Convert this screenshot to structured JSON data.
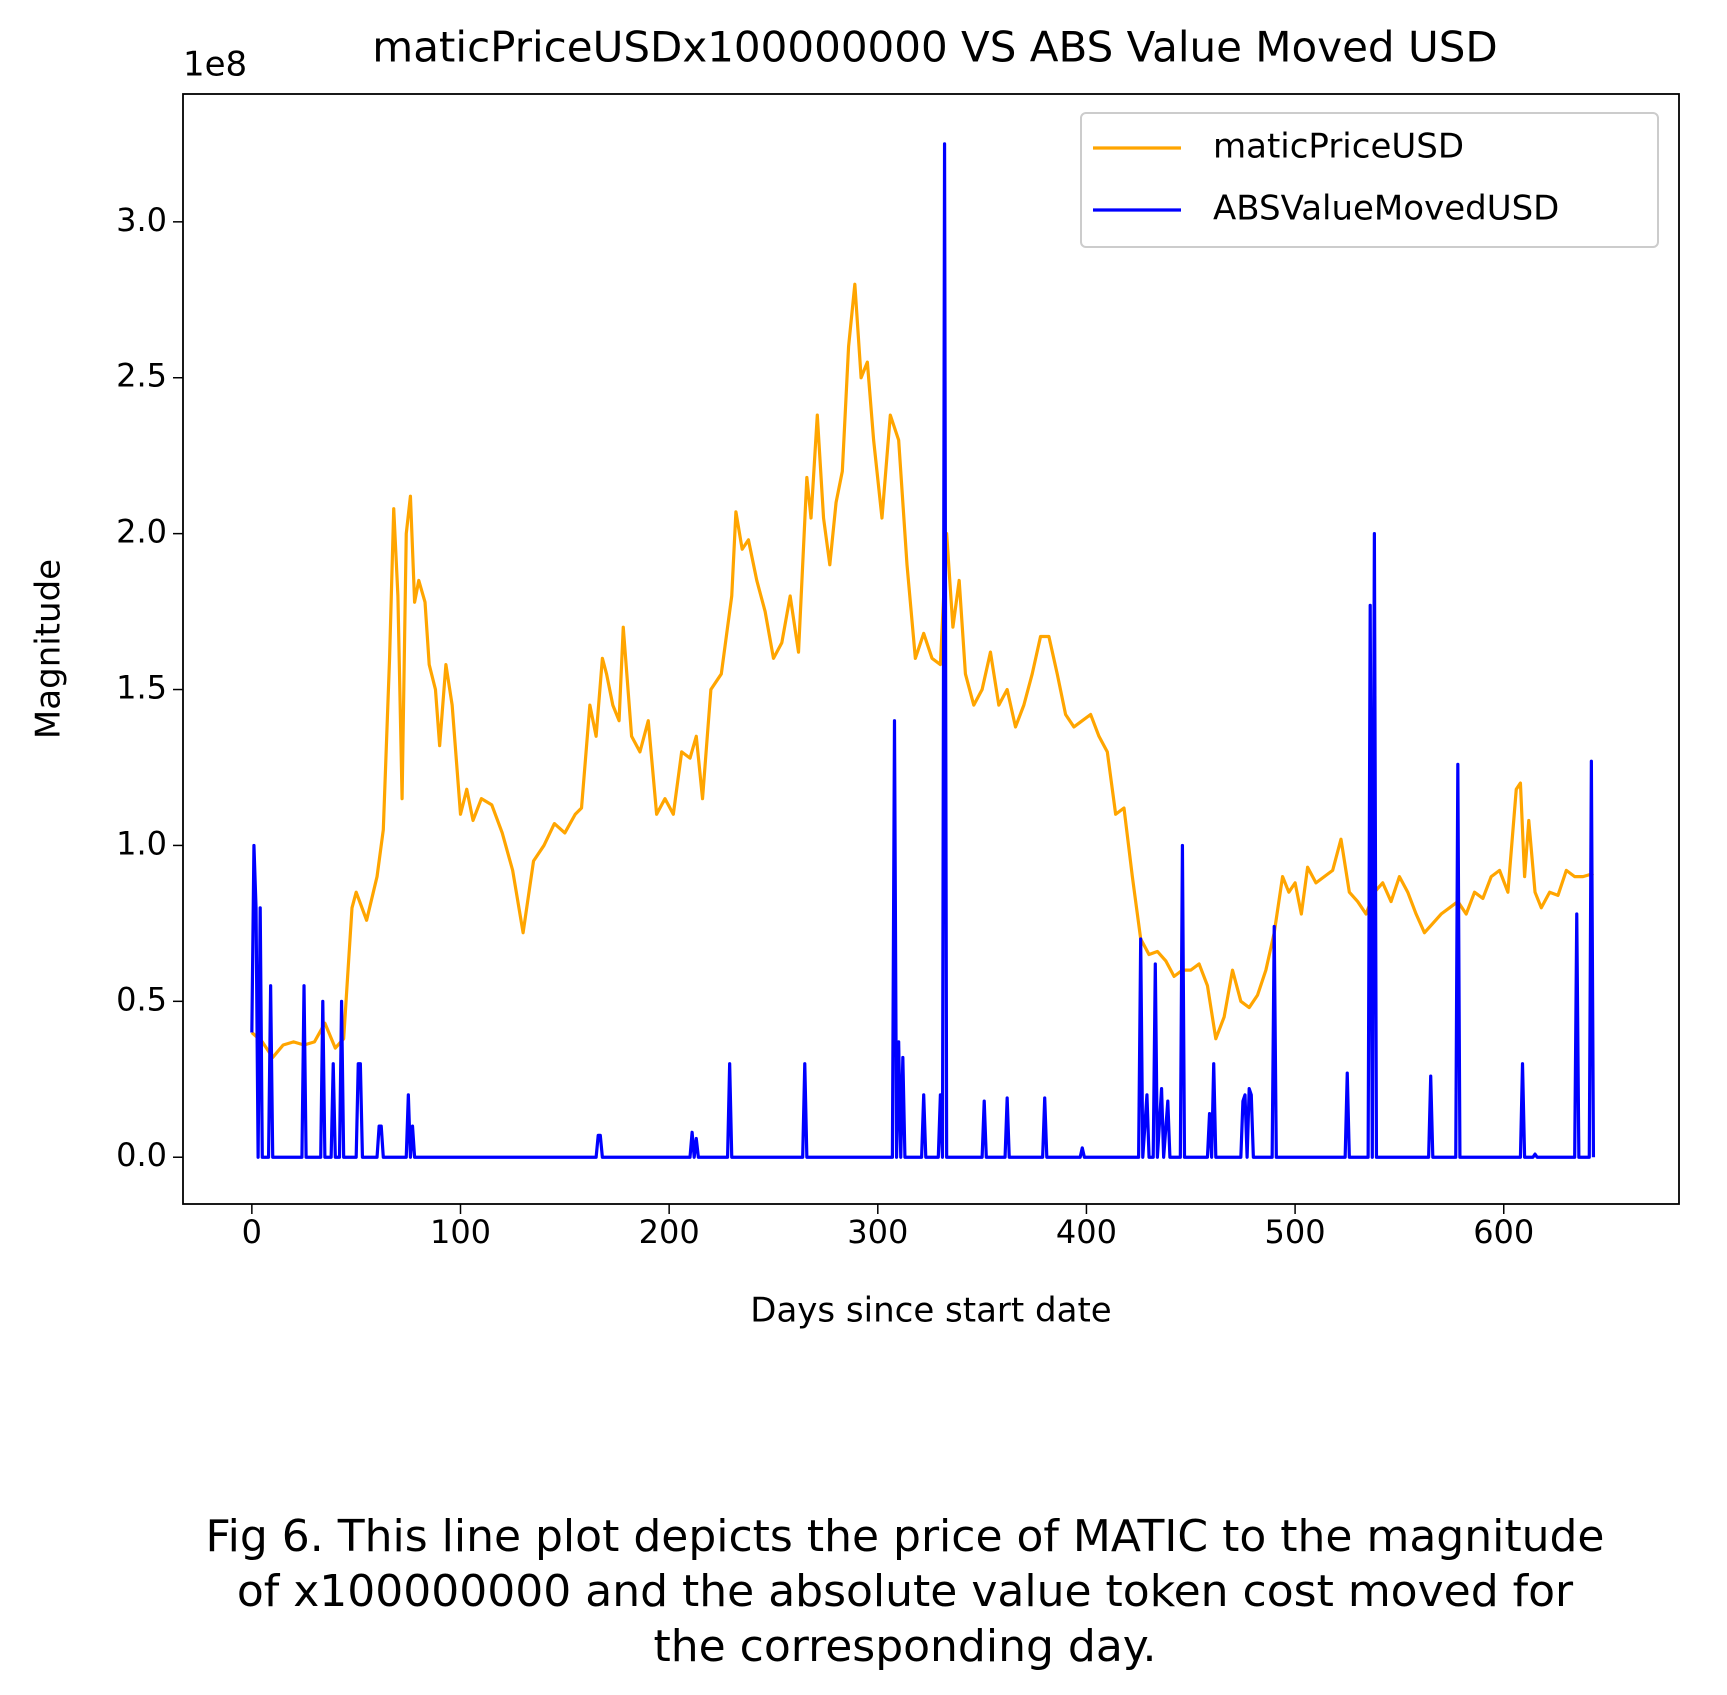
{
  "chart_data": {
    "type": "line",
    "title": "maticPriceUSDx100000000 VS ABS Value Moved USD",
    "y_offset_label": "1e8",
    "xlabel": "Days since start date",
    "ylabel": "Magnitude",
    "caption": [
      "Fig 6. This line plot depicts the price of MATIC to the magnitude",
      "of x100000000 and the absolute value token cost moved for",
      "the corresponding day."
    ],
    "xlim": [
      -33,
      684
    ],
    "ylim": [
      -0.15,
      3.41
    ],
    "xticks": [
      0,
      100,
      200,
      300,
      400,
      500,
      600
    ],
    "yticks": [
      {
        "value": 0,
        "label": "0.0"
      },
      0.5,
      {
        "value": 1,
        "label": "1.0"
      },
      1.5,
      {
        "value": 2,
        "label": "2.0"
      },
      2.5,
      {
        "value": 3,
        "label": "3.0"
      }
    ],
    "legend": "upper right",
    "series": [
      {
        "name": "maticPriceUSD",
        "color": "#ffa500",
        "x": [
          0,
          5,
          10,
          15,
          20,
          25,
          30,
          35,
          40,
          44,
          48,
          50,
          55,
          60,
          63,
          66,
          68,
          70,
          72,
          74,
          76,
          78,
          80,
          83,
          85,
          88,
          90,
          93,
          96,
          100,
          103,
          106,
          110,
          115,
          120,
          125,
          130,
          135,
          140,
          145,
          150,
          155,
          158,
          162,
          165,
          168,
          170,
          173,
          176,
          178,
          182,
          186,
          190,
          194,
          198,
          202,
          206,
          210,
          213,
          216,
          220,
          225,
          230,
          232,
          235,
          238,
          242,
          246,
          250,
          254,
          258,
          262,
          266,
          268,
          271,
          274,
          277,
          280,
          283,
          286,
          289,
          292,
          295,
          298,
          302,
          306,
          310,
          314,
          318,
          322,
          326,
          330,
          333,
          336,
          339,
          342,
          346,
          350,
          354,
          358,
          362,
          366,
          370,
          374,
          378,
          382,
          386,
          390,
          394,
          398,
          402,
          406,
          410,
          414,
          418,
          422,
          426,
          430,
          434,
          438,
          442,
          446,
          450,
          454,
          458,
          462,
          466,
          470,
          474,
          478,
          482,
          486,
          490,
          494,
          497,
          500,
          503,
          506,
          510,
          514,
          518,
          522,
          526,
          530,
          534,
          538,
          542,
          546,
          550,
          554,
          558,
          562,
          566,
          570,
          574,
          578,
          582,
          586,
          590,
          594,
          598,
          602,
          606,
          608,
          610,
          612,
          615,
          618,
          622,
          626,
          630,
          634,
          638,
          643
        ],
        "values": [
          0.4,
          0.37,
          0.32,
          0.36,
          0.37,
          0.36,
          0.37,
          0.43,
          0.35,
          0.38,
          0.8,
          0.85,
          0.76,
          0.9,
          1.05,
          1.6,
          2.08,
          1.8,
          1.15,
          2.0,
          2.12,
          1.78,
          1.85,
          1.78,
          1.58,
          1.5,
          1.32,
          1.58,
          1.45,
          1.1,
          1.18,
          1.08,
          1.15,
          1.13,
          1.04,
          0.92,
          0.72,
          0.95,
          1.0,
          1.07,
          1.04,
          1.1,
          1.12,
          1.45,
          1.35,
          1.6,
          1.55,
          1.45,
          1.4,
          1.7,
          1.35,
          1.3,
          1.4,
          1.1,
          1.15,
          1.1,
          1.3,
          1.28,
          1.35,
          1.15,
          1.5,
          1.55,
          1.8,
          2.07,
          1.95,
          1.98,
          1.85,
          1.75,
          1.6,
          1.65,
          1.8,
          1.62,
          2.18,
          2.05,
          2.38,
          2.05,
          1.9,
          2.1,
          2.2,
          2.6,
          2.8,
          2.5,
          2.55,
          2.3,
          2.05,
          2.38,
          2.3,
          1.9,
          1.6,
          1.68,
          1.6,
          1.58,
          2.0,
          1.7,
          1.85,
          1.55,
          1.45,
          1.5,
          1.62,
          1.45,
          1.5,
          1.38,
          1.45,
          1.55,
          1.67,
          1.67,
          1.55,
          1.42,
          1.38,
          1.4,
          1.42,
          1.35,
          1.3,
          1.1,
          1.12,
          0.9,
          0.7,
          0.65,
          0.66,
          0.63,
          0.58,
          0.6,
          0.6,
          0.62,
          0.55,
          0.38,
          0.45,
          0.6,
          0.5,
          0.48,
          0.52,
          0.6,
          0.72,
          0.9,
          0.85,
          0.88,
          0.78,
          0.93,
          0.88,
          0.9,
          0.92,
          1.02,
          0.85,
          0.82,
          0.78,
          0.85,
          0.88,
          0.82,
          0.9,
          0.85,
          0.78,
          0.72,
          0.75,
          0.78,
          0.8,
          0.82,
          0.78,
          0.85,
          0.83,
          0.9,
          0.92,
          0.85,
          1.18,
          1.2,
          0.9,
          1.08,
          0.85,
          0.8,
          0.85,
          0.84,
          0.92,
          0.9,
          0.9,
          0.91
        ]
      },
      {
        "name": "ABSValueMovedUSD",
        "color": "#0000ff",
        "x": [
          0,
          1,
          2,
          3,
          4,
          5,
          8,
          9,
          10,
          24,
          25,
          26,
          33,
          34,
          35,
          38,
          39,
          40,
          42,
          43,
          44,
          50,
          51,
          52,
          53,
          60,
          61,
          62,
          63,
          74,
          75,
          76,
          77,
          78,
          165,
          166,
          167,
          168,
          210,
          211,
          212,
          213,
          214,
          228,
          229,
          230,
          264,
          265,
          266,
          307,
          308,
          309,
          310,
          311,
          312,
          313,
          321,
          322,
          323,
          329,
          330,
          331,
          332,
          333,
          350,
          351,
          352,
          361,
          362,
          363,
          379,
          380,
          381,
          397,
          398,
          399,
          425,
          426,
          427,
          429,
          430,
          432,
          433,
          434,
          436,
          437,
          439,
          440,
          445,
          446,
          447,
          458,
          459,
          460,
          461,
          462,
          474,
          475,
          476,
          477,
          478,
          479,
          480,
          489,
          490,
          491,
          524,
          525,
          526,
          535,
          536,
          537,
          538,
          539,
          564,
          565,
          566,
          577,
          578,
          579,
          608,
          609,
          610,
          614,
          615,
          616,
          634,
          635,
          636,
          641,
          642,
          643
        ],
        "values": [
          0.4,
          1.0,
          0.8,
          0,
          0.8,
          0,
          0,
          0.55,
          0,
          0,
          0.55,
          0,
          0,
          0.5,
          0,
          0,
          0.3,
          0,
          0,
          0.5,
          0,
          0,
          0.3,
          0.3,
          0,
          0,
          0.1,
          0.1,
          0,
          0,
          0.2,
          0,
          0.1,
          0,
          0,
          0.07,
          0.07,
          0,
          0,
          0.08,
          0,
          0.06,
          0,
          0,
          0.3,
          0,
          0,
          0.3,
          0,
          0,
          1.4,
          0,
          0.37,
          0,
          0.32,
          0,
          0,
          0.2,
          0,
          0,
          0.2,
          0,
          3.25,
          0,
          0,
          0.18,
          0,
          0,
          0.19,
          0,
          0,
          0.19,
          0,
          0,
          0.03,
          0,
          0,
          0.7,
          0,
          0.2,
          0,
          0,
          0.62,
          0,
          0.22,
          0,
          0.18,
          0,
          0,
          1.0,
          0,
          0,
          0.14,
          0,
          0.3,
          0,
          0,
          0.18,
          0.2,
          0,
          0.22,
          0.2,
          0,
          0,
          0.74,
          0,
          0,
          0.27,
          0,
          0,
          1.77,
          0,
          2.0,
          0,
          0,
          0.26,
          0,
          0,
          1.26,
          0,
          0,
          0.3,
          0,
          0,
          0.01,
          0,
          0,
          0.78,
          0,
          0,
          1.27,
          0
        ]
      }
    ]
  }
}
